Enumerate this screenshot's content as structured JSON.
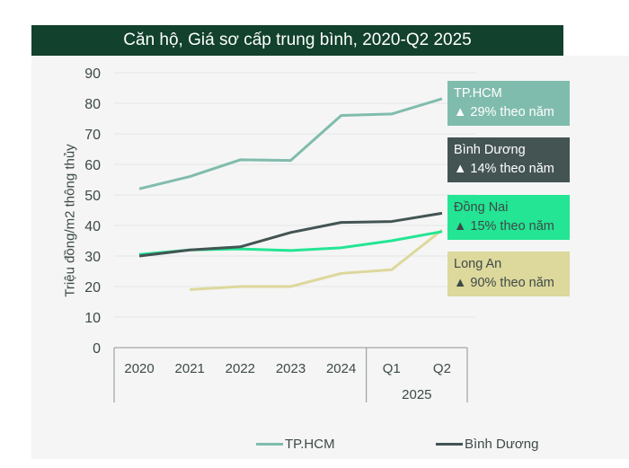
{
  "chart_data": {
    "type": "line",
    "title": "Căn hộ, Giá sơ cấp trung bình, 2020-Q2 2025",
    "xlabel": "",
    "ylabel": "Triệu đồng/m2 thông thủy",
    "ylim": [
      0,
      90
    ],
    "yticks": [
      0,
      10,
      20,
      30,
      40,
      50,
      60,
      70,
      80,
      90
    ],
    "ytick_labels": [
      "0",
      "10",
      "20",
      "30",
      "40",
      "50",
      "60",
      "70",
      "80",
      "90"
    ],
    "grid": true,
    "categories": [
      "2020",
      "2021",
      "2022",
      "2023",
      "2024",
      "Q1",
      "Q2"
    ],
    "category_groups": [
      {
        "label": "2025",
        "members": [
          "Q1",
          "Q2"
        ]
      }
    ],
    "series": [
      {
        "name": "TP.HCM",
        "color": "#80bcad",
        "values": [
          52,
          56,
          61.5,
          61.3,
          76,
          76.5,
          81.5
        ],
        "callout": "▲ 29% theo năm",
        "callout_bg": "#80bcad",
        "callout_fg": "#ffffff"
      },
      {
        "name": "Bình Dương",
        "color": "#435453",
        "values": [
          30,
          32,
          33,
          37.7,
          41,
          41.3,
          44
        ],
        "callout": "▲ 14% theo năm",
        "callout_bg": "#435453",
        "callout_fg": "#ffffff"
      },
      {
        "name": "Đồng Nai",
        "color": "#23e594",
        "values": [
          30.5,
          32,
          32.3,
          31.8,
          32.7,
          35,
          38
        ],
        "callout": "▲ 15% theo năm",
        "callout_bg": "#23e594",
        "callout_fg": "#3d4a48"
      },
      {
        "name": "Long An",
        "color": "#ddd89c",
        "values": [
          null,
          19,
          20,
          20,
          24.3,
          25.5,
          38.5
        ],
        "callout": "▲ 90% theo năm",
        "callout_bg": "#ddd89c",
        "callout_fg": "#3d4a48"
      }
    ],
    "legend": {
      "position": "bottom",
      "entries": [
        "TP.HCM",
        "Bình Dương"
      ]
    }
  }
}
